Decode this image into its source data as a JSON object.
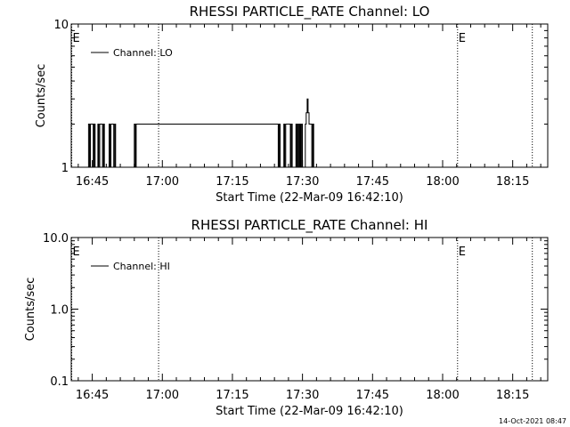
{
  "timestamp": "14-Oct-2021 08:47",
  "chart_data": [
    {
      "type": "line",
      "title": "RHESSI PARTICLE_RATE Channel: LO",
      "xlabel": "Start Time (22-Mar-09 16:42:10)",
      "ylabel": "Counts/sec",
      "yscale": "log",
      "ylim": [
        1,
        10
      ],
      "y_ticks": [
        1,
        10
      ],
      "y_tick_labels": [
        "1",
        "10"
      ],
      "x_tick_labels": [
        "16:45",
        "17:00",
        "17:15",
        "17:30",
        "17:45",
        "18:00",
        "18:15"
      ],
      "x_tick_minutes": [
        0,
        15,
        30,
        45,
        60,
        75,
        90
      ],
      "xlim_minutes": [
        -4.5,
        97.5
      ],
      "vertical_lines_minutes": [
        -4.4,
        14.2,
        78.2,
        94.2
      ],
      "event_markers": [
        {
          "label": "E",
          "x_minute": -4.4
        },
        {
          "label": "E",
          "x_minute": 78.2
        }
      ],
      "legend": "top-left",
      "series": [
        {
          "name": "Channel: LO",
          "x_minutes": [
            -0.8,
            -0.8,
            -0.6,
            -0.6,
            -0.4,
            -0.4,
            0.2,
            0.2,
            0.4,
            0.4,
            0.6,
            0.6,
            1.2,
            1.2,
            1.4,
            1.4,
            1.6,
            1.6,
            2.2,
            2.2,
            2.4,
            2.4,
            2.6,
            2.6,
            3.6,
            3.6,
            3.8,
            3.8,
            4.0,
            4.0,
            4.6,
            4.6,
            4.8,
            4.8,
            5.0,
            5.0,
            9.0,
            9.0,
            9.2,
            9.2,
            9.4,
            9.4,
            39.8,
            39.8,
            40.0,
            40.0,
            40.2,
            40.2,
            41.0,
            41.0,
            41.2,
            41.2,
            41.4,
            41.4,
            42.4,
            42.4,
            42.6,
            42.6,
            42.8,
            42.8,
            43.6,
            43.6,
            43.8,
            43.8,
            44.0,
            44.0,
            44.2,
            44.2,
            44.4,
            44.4,
            44.6,
            44.6,
            44.8,
            44.8,
            45.0,
            45.0,
            45.6,
            45.6,
            45.8,
            45.8,
            46.0,
            46.0,
            46.2,
            46.2,
            46.4,
            46.4,
            47.0,
            47.0,
            47.2,
            47.2,
            47.4,
            47.4
          ],
          "values": [
            1,
            2,
            2,
            1,
            1,
            2,
            2,
            1,
            1,
            2,
            2,
            1,
            1,
            2,
            2,
            1,
            1,
            2,
            2,
            1,
            1,
            2,
            2,
            1,
            1,
            2,
            2,
            1,
            1,
            2,
            2,
            1,
            1,
            2,
            2,
            1,
            1,
            2,
            2,
            1,
            1,
            2,
            2,
            1,
            1,
            2,
            2,
            1,
            1,
            2,
            2,
            1,
            1,
            2,
            2,
            1,
            1,
            2,
            2,
            1,
            1,
            2,
            2,
            1,
            1,
            2,
            2,
            1,
            1,
            2,
            2,
            1,
            1,
            2,
            2,
            1,
            1,
            2,
            2,
            2.4,
            2.4,
            3,
            3,
            2.4,
            2.4,
            2,
            2,
            1,
            1,
            2,
            2,
            1
          ]
        }
      ]
    },
    {
      "type": "line",
      "title": "RHESSI PARTICLE_RATE Channel: HI",
      "xlabel": "Start Time (22-Mar-09 16:42:10)",
      "ylabel": "Counts/sec",
      "yscale": "log",
      "ylim": [
        0.1,
        10
      ],
      "y_ticks": [
        0.1,
        1,
        10
      ],
      "y_tick_labels": [
        "0.1",
        "1.0",
        "10.0"
      ],
      "x_tick_labels": [
        "16:45",
        "17:00",
        "17:15",
        "17:30",
        "17:45",
        "18:00",
        "18:15"
      ],
      "x_tick_minutes": [
        0,
        15,
        30,
        45,
        60,
        75,
        90
      ],
      "xlim_minutes": [
        -4.5,
        97.5
      ],
      "vertical_lines_minutes": [
        -4.4,
        14.2,
        78.2,
        94.2
      ],
      "event_markers": [
        {
          "label": "E",
          "x_minute": -4.4
        },
        {
          "label": "E",
          "x_minute": 78.2
        }
      ],
      "legend": "top-left",
      "series": [
        {
          "name": "Channel: HI",
          "x_minutes": [],
          "values": []
        }
      ]
    }
  ]
}
